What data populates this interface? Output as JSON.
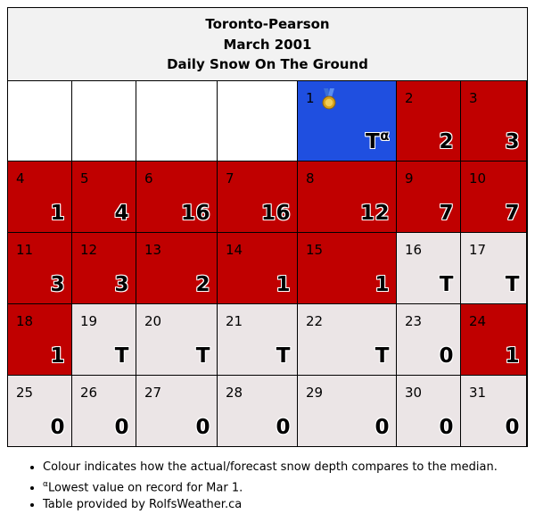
{
  "header": {
    "station": "Toronto-Pearson",
    "month": "March 2001",
    "title": "Daily Snow On The Ground"
  },
  "colors": {
    "above_median": "#c00000",
    "below_median": "#ebe5e6",
    "record_low": "#1f4fe0"
  },
  "leading_empty_cells": 4,
  "days": [
    {
      "day": "1",
      "value": "T",
      "note": "α",
      "status": "record_low",
      "icon": "medal-icon"
    },
    {
      "day": "2",
      "value": "2",
      "status": "above_median"
    },
    {
      "day": "3",
      "value": "3",
      "status": "above_median"
    },
    {
      "day": "4",
      "value": "1",
      "status": "above_median"
    },
    {
      "day": "5",
      "value": "4",
      "status": "above_median"
    },
    {
      "day": "6",
      "value": "16",
      "status": "above_median"
    },
    {
      "day": "7",
      "value": "16",
      "status": "above_median"
    },
    {
      "day": "8",
      "value": "12",
      "status": "above_median"
    },
    {
      "day": "9",
      "value": "7",
      "status": "above_median"
    },
    {
      "day": "10",
      "value": "7",
      "status": "above_median"
    },
    {
      "day": "11",
      "value": "3",
      "status": "above_median"
    },
    {
      "day": "12",
      "value": "3",
      "status": "above_median"
    },
    {
      "day": "13",
      "value": "2",
      "status": "above_median"
    },
    {
      "day": "14",
      "value": "1",
      "status": "above_median"
    },
    {
      "day": "15",
      "value": "1",
      "status": "above_median"
    },
    {
      "day": "16",
      "value": "T",
      "status": "below_median"
    },
    {
      "day": "17",
      "value": "T",
      "status": "below_median"
    },
    {
      "day": "18",
      "value": "1",
      "status": "above_median"
    },
    {
      "day": "19",
      "value": "T",
      "status": "below_median"
    },
    {
      "day": "20",
      "value": "T",
      "status": "below_median"
    },
    {
      "day": "21",
      "value": "T",
      "status": "below_median"
    },
    {
      "day": "22",
      "value": "T",
      "status": "below_median"
    },
    {
      "day": "23",
      "value": "0",
      "status": "below_median"
    },
    {
      "day": "24",
      "value": "1",
      "status": "above_median"
    },
    {
      "day": "25",
      "value": "0",
      "status": "below_median"
    },
    {
      "day": "26",
      "value": "0",
      "status": "below_median"
    },
    {
      "day": "27",
      "value": "0",
      "status": "below_median"
    },
    {
      "day": "28",
      "value": "0",
      "status": "below_median"
    },
    {
      "day": "29",
      "value": "0",
      "status": "below_median"
    },
    {
      "day": "30",
      "value": "0",
      "status": "below_median"
    },
    {
      "day": "31",
      "value": "0",
      "status": "below_median"
    }
  ],
  "notes": {
    "colour": "Colour indicates how the actual/forecast snow depth compares to the median.",
    "footnote_mark": "α",
    "footnote_text": "Lowest value on record for Mar 1.",
    "credit": "Table provided by RolfsWeather.ca"
  }
}
